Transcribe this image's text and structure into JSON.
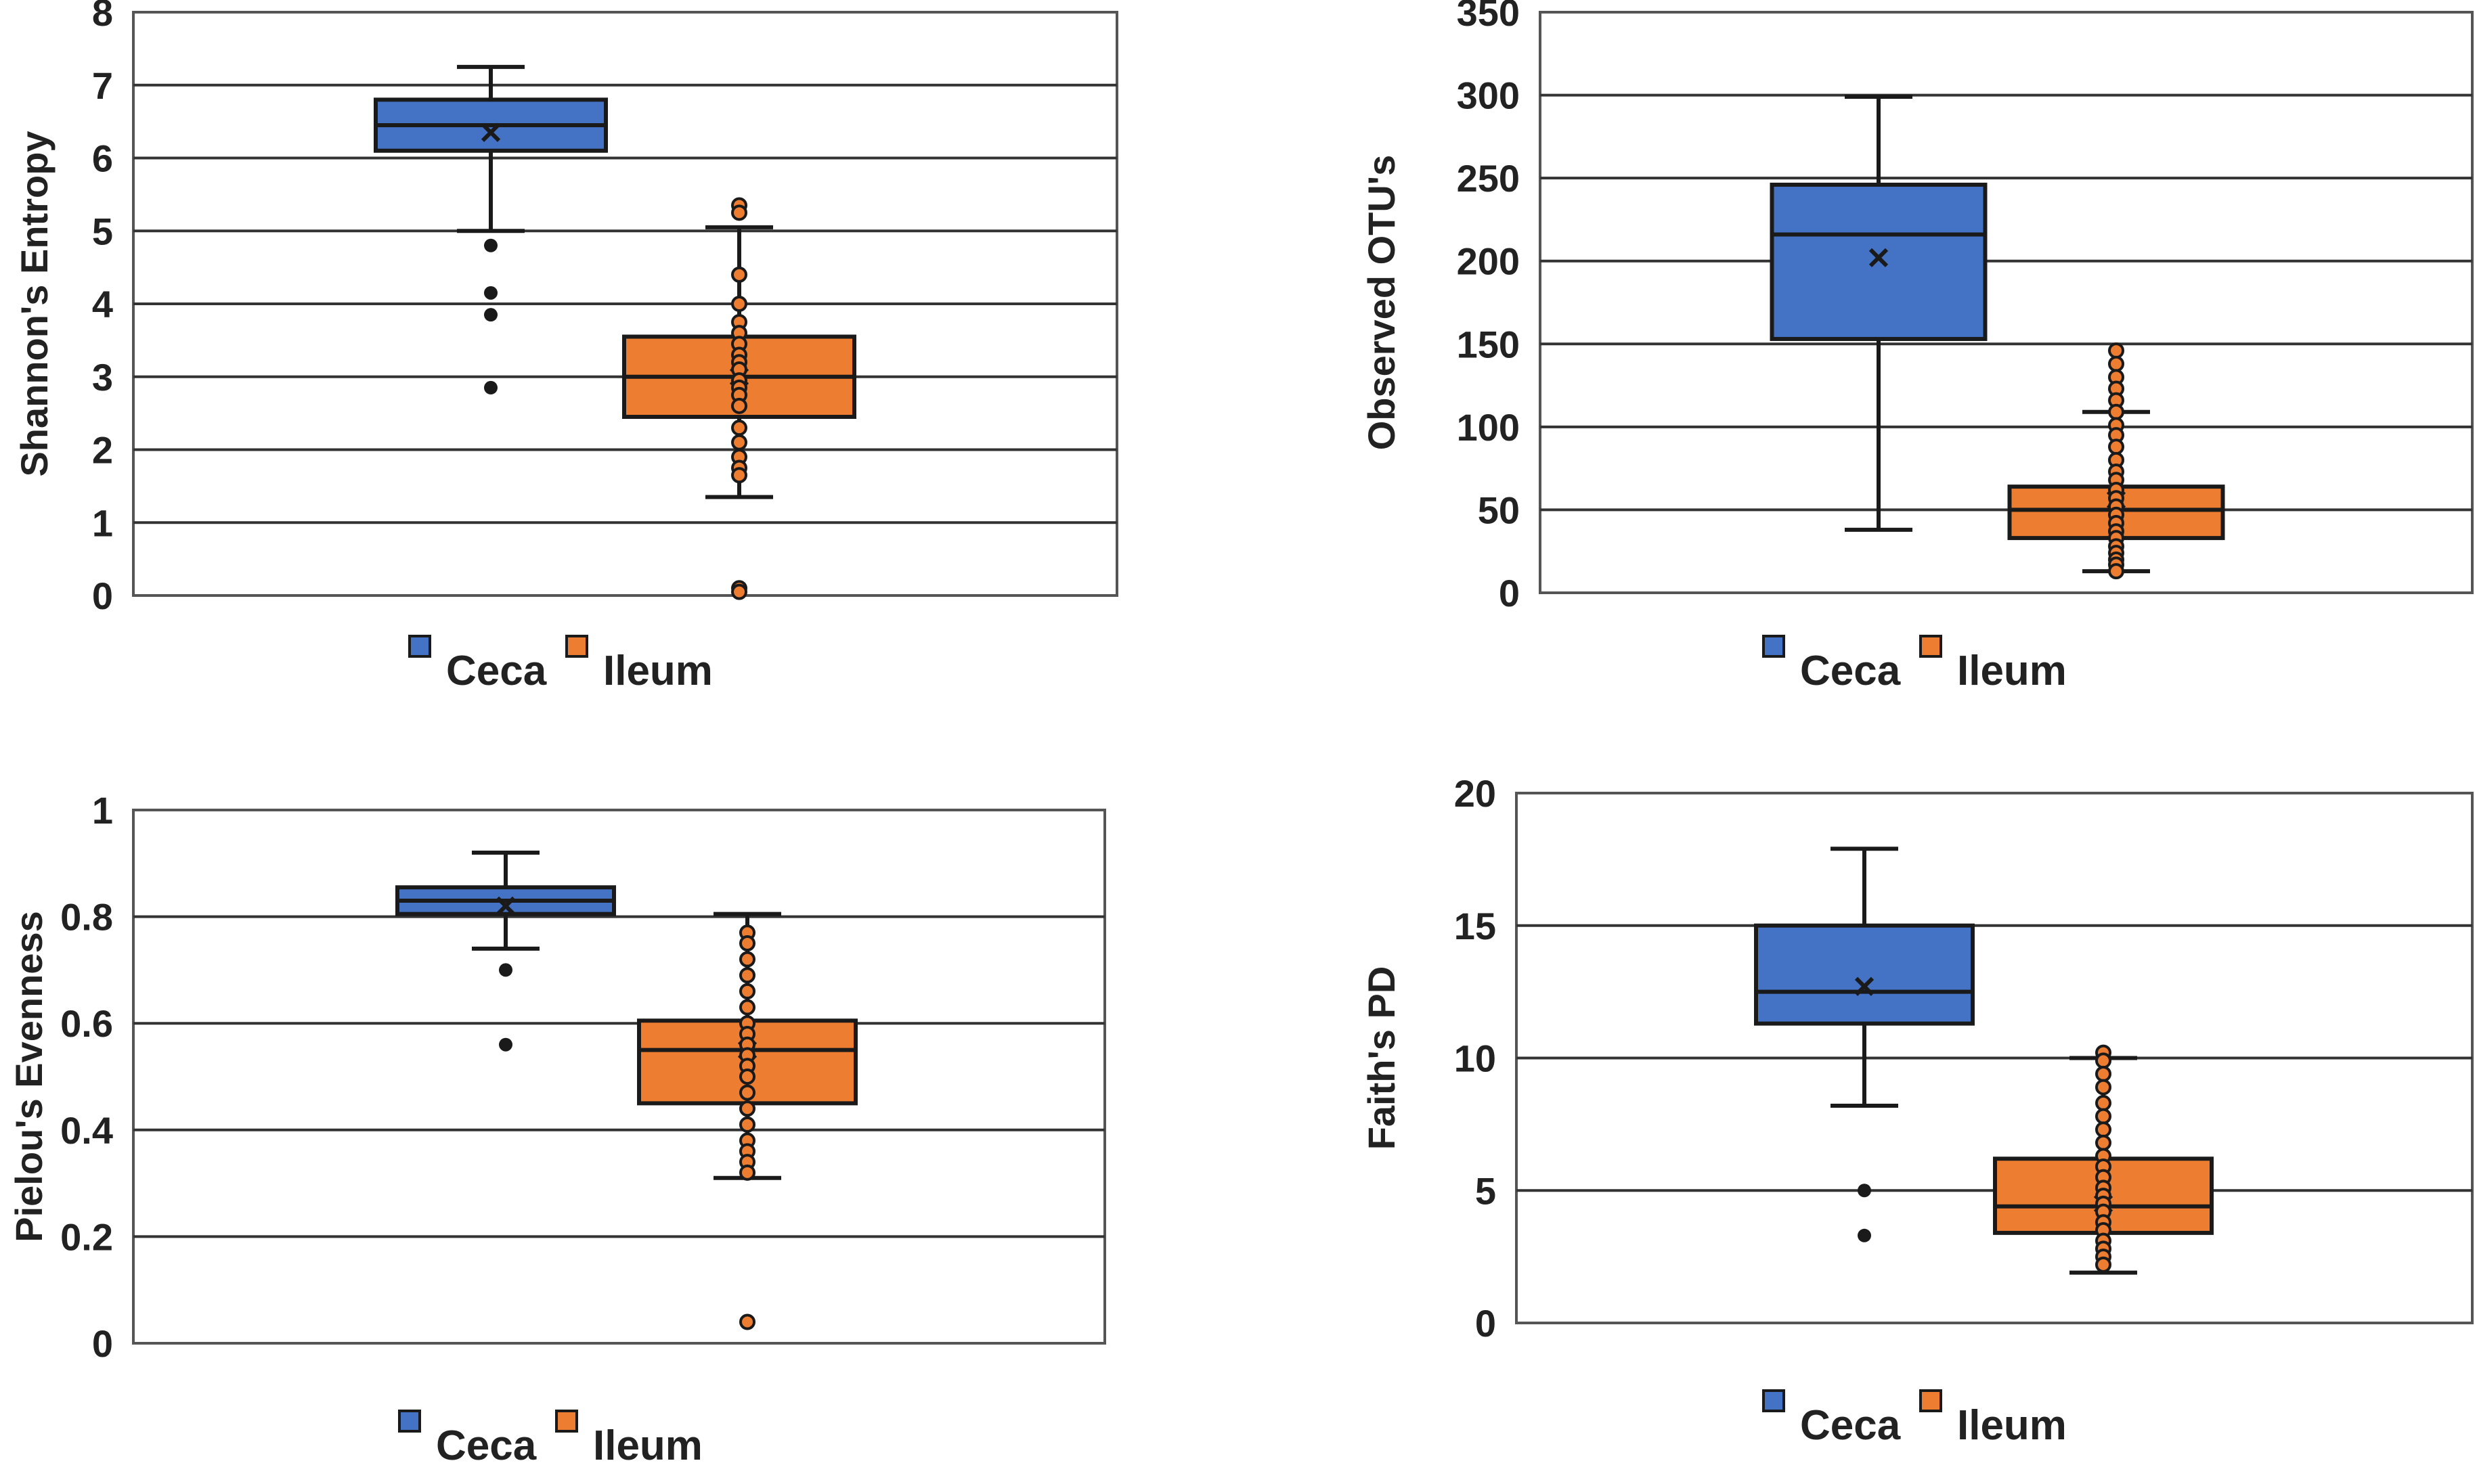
{
  "colors": {
    "ceca": "#4472c4",
    "ileum": "#ed7d31",
    "outline": "#1a1a1a",
    "grid": "#333333"
  },
  "chart_data": [
    {
      "type": "boxplot",
      "ylabel": "Shannon's Entropy",
      "ylim": [
        0,
        8
      ],
      "yticks": [
        0,
        1,
        2,
        3,
        4,
        5,
        6,
        7,
        8
      ],
      "grid": true,
      "legend": [
        "Ceca",
        "Ileum"
      ],
      "series": [
        {
          "name": "Ceca",
          "whisker_low": 5.0,
          "q1": 6.1,
          "median": 6.45,
          "q3": 6.8,
          "whisker_high": 7.25,
          "mean": 6.35,
          "outliers": [
            4.8,
            4.15,
            3.85,
            2.85
          ]
        },
        {
          "name": "Ileum",
          "whisker_low": 1.35,
          "q1": 2.45,
          "median": 3.0,
          "q3": 3.55,
          "whisker_high": 5.05,
          "mean": 3.0,
          "points": [
            5.35,
            5.25,
            4.4,
            4.0,
            3.75,
            3.6,
            3.45,
            3.3,
            3.2,
            3.1,
            2.95,
            2.85,
            2.75,
            2.6,
            2.3,
            2.1,
            1.9,
            1.75,
            1.65,
            0.1,
            0.05
          ]
        }
      ]
    },
    {
      "type": "boxplot",
      "ylabel": "Observed OTU's",
      "ylim": [
        0,
        350
      ],
      "yticks": [
        0,
        50,
        100,
        150,
        200,
        250,
        300,
        350
      ],
      "grid": true,
      "legend": [
        "Ceca",
        "Ileum"
      ],
      "series": [
        {
          "name": "Ceca",
          "whisker_low": 38,
          "q1": 153,
          "median": 216,
          "q3": 246,
          "whisker_high": 299,
          "mean": 202,
          "outliers": []
        },
        {
          "name": "Ileum",
          "whisker_low": 13,
          "q1": 33,
          "median": 50,
          "q3": 64,
          "whisker_high": 109,
          "mean": 56,
          "points": [
            146,
            138,
            130,
            123,
            116,
            109,
            101,
            95,
            88,
            80,
            73,
            68,
            62,
            57,
            52,
            47,
            42,
            37,
            33,
            28,
            24,
            20,
            17,
            13
          ]
        }
      ]
    },
    {
      "type": "boxplot",
      "ylabel": "Pielou's Evenness",
      "ylim": [
        0,
        1
      ],
      "yticks": [
        0,
        0.2,
        0.4,
        0.6,
        0.8,
        1
      ],
      "grid": true,
      "legend": [
        "Ceca",
        "Ileum"
      ],
      "series": [
        {
          "name": "Ceca",
          "whisker_low": 0.74,
          "q1": 0.805,
          "median": 0.83,
          "q3": 0.855,
          "whisker_high": 0.92,
          "mean": 0.82,
          "outliers": [
            0.7,
            0.56
          ]
        },
        {
          "name": "Ileum",
          "whisker_low": 0.31,
          "q1": 0.45,
          "median": 0.55,
          "q3": 0.605,
          "whisker_high": 0.805,
          "mean": 0.55,
          "points": [
            0.77,
            0.75,
            0.72,
            0.69,
            0.66,
            0.63,
            0.6,
            0.58,
            0.56,
            0.54,
            0.52,
            0.5,
            0.47,
            0.44,
            0.41,
            0.38,
            0.36,
            0.34,
            0.32,
            0.04
          ]
        }
      ]
    },
    {
      "type": "boxplot",
      "ylabel": "Faith's PD",
      "ylim": [
        0,
        20
      ],
      "yticks": [
        0,
        5,
        10,
        15,
        20
      ],
      "grid": true,
      "legend": [
        "Ceca",
        "Ileum"
      ],
      "series": [
        {
          "name": "Ceca",
          "whisker_low": 8.2,
          "q1": 11.3,
          "median": 12.5,
          "q3": 15.0,
          "whisker_high": 17.9,
          "mean": 12.7,
          "outliers": [
            5.0,
            3.3
          ]
        },
        {
          "name": "Ileum",
          "whisker_low": 1.9,
          "q1": 3.4,
          "median": 4.4,
          "q3": 6.2,
          "whisker_high": 10.0,
          "mean": 4.5,
          "points": [
            10.2,
            9.9,
            9.4,
            8.9,
            8.3,
            7.8,
            7.3,
            6.8,
            6.3,
            5.9,
            5.5,
            5.1,
            4.8,
            4.5,
            4.2,
            3.8,
            3.5,
            3.1,
            2.8,
            2.5,
            2.2
          ]
        }
      ]
    }
  ]
}
